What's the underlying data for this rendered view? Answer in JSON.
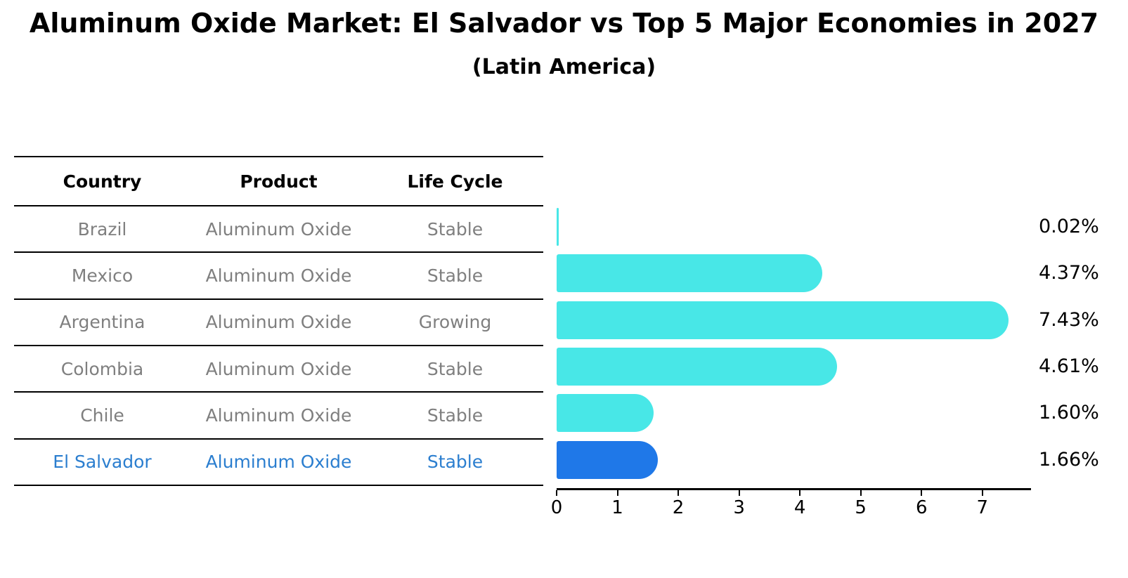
{
  "chart_data": {
    "type": "bar",
    "orientation": "horizontal",
    "title": "Aluminum Oxide Market: El Salvador vs Top 5 Major Economies in 2027",
    "subtitle": "(Latin America)",
    "categories": [
      "Brazil",
      "Mexico",
      "Argentina",
      "Colombia",
      "Chile",
      "El Salvador"
    ],
    "values": [
      0.02,
      4.37,
      7.43,
      4.61,
      1.6,
      1.66
    ],
    "value_labels": [
      "0.02%",
      "4.37%",
      "7.43%",
      "4.61%",
      "1.60%",
      "1.66%"
    ],
    "x_ticks": [
      "0",
      "1",
      "2",
      "3",
      "4",
      "5",
      "6",
      "7"
    ],
    "xlim": [
      0,
      7.8
    ],
    "grid": false,
    "legend": "none",
    "highlight_index": 5,
    "colors": {
      "bar": "#48e7e7",
      "highlight_bar": "#1f78e8",
      "highlight_border": "#1f78e8",
      "value_label_text": "#000000",
      "axis": "#000000"
    }
  },
  "table": {
    "headers": [
      "Country",
      "Product",
      "Life Cycle"
    ],
    "rows": [
      {
        "country": "Brazil",
        "product": "Aluminum Oxide",
        "life_cycle": "Stable",
        "highlighted": false
      },
      {
        "country": "Mexico",
        "product": "Aluminum Oxide",
        "life_cycle": "Stable",
        "highlighted": false
      },
      {
        "country": "Argentina",
        "product": "Aluminum Oxide",
        "life_cycle": "Growing",
        "highlighted": false
      },
      {
        "country": "Colombia",
        "product": "Aluminum Oxide",
        "life_cycle": "Stable",
        "highlighted": false
      },
      {
        "country": "Chile",
        "product": "Aluminum Oxide",
        "life_cycle": "Stable",
        "highlighted": false
      },
      {
        "country": "El Salvador",
        "product": "Aluminum Oxide",
        "life_cycle": "Stable",
        "highlighted": true
      }
    ],
    "colors": {
      "header_text": "#000000",
      "row_text": "#7f7f7f",
      "highlight_text": "#2b7ecf",
      "line": "#000000"
    }
  }
}
